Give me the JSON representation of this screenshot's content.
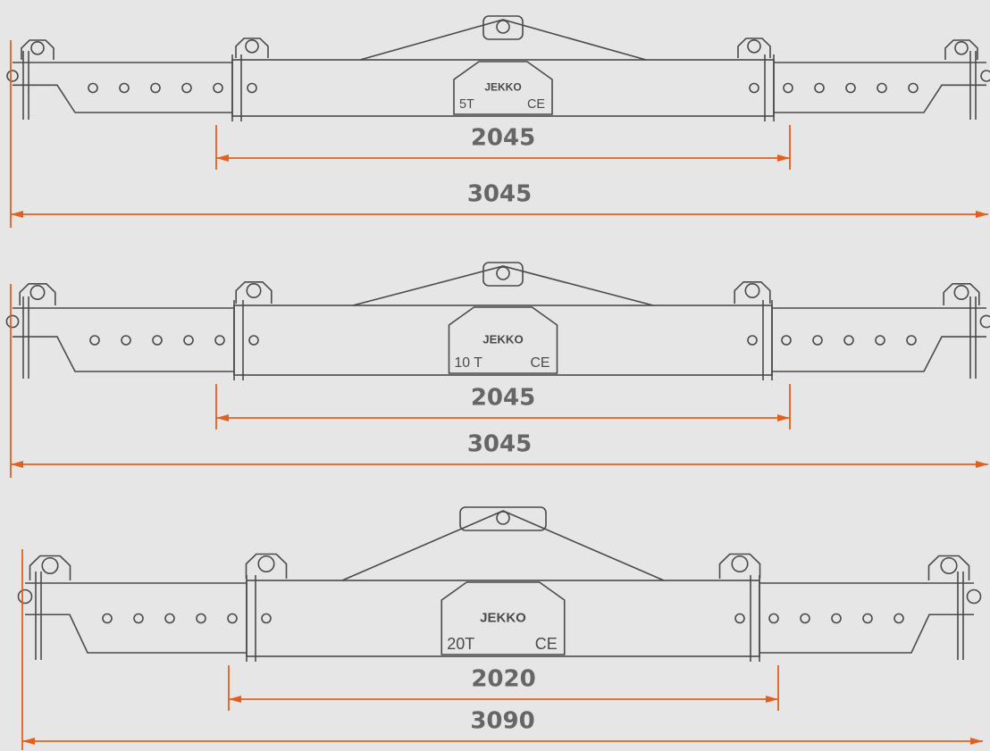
{
  "beams": [
    {
      "capacity": "5T",
      "mark": "CE",
      "brand": "JEKKO",
      "inner_length": 2045,
      "outer_length": 3045
    },
    {
      "capacity": "10 T",
      "mark": "CE",
      "brand": "JEKKO",
      "inner_length": 2045,
      "outer_length": 3045
    },
    {
      "capacity": "20T",
      "mark": "CE",
      "brand": "JEKKO",
      "inner_length": 2020,
      "outer_length": 3090
    }
  ]
}
